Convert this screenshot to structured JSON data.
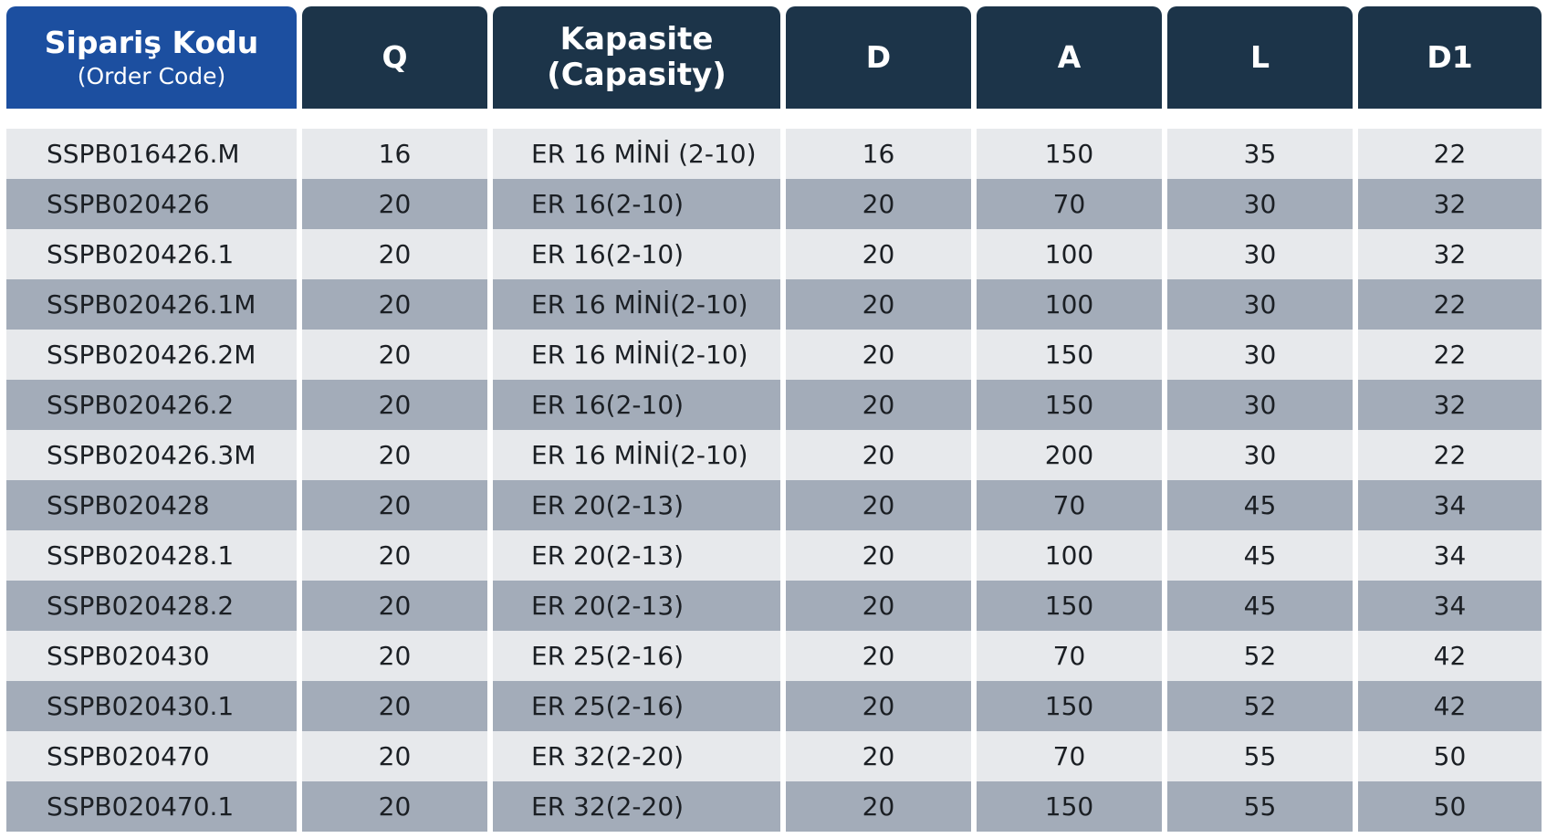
{
  "table": {
    "headers": {
      "code_title": "Sipariş Kodu",
      "code_sub": "(Order Code)",
      "q": "Q",
      "kap_line1": "Kapasite",
      "kap_line2": "(Capasity)",
      "d": "D",
      "a": "A",
      "l": "L",
      "d1": "D1"
    },
    "colors": {
      "header_primary": "#1c4fa0",
      "header_dark": "#1c3449",
      "row_light": "#e7e9ec",
      "row_dark": "#a3acb9"
    },
    "rows": [
      {
        "code": "SSPB016426.M",
        "q": "16",
        "kap": "ER 16 MİNİ (2-10)",
        "d": "16",
        "a": "150",
        "l": "35",
        "d1": "22"
      },
      {
        "code": "SSPB020426",
        "q": "20",
        "kap": "ER 16(2-10)",
        "d": "20",
        "a": "70",
        "l": "30",
        "d1": "32"
      },
      {
        "code": "SSPB020426.1",
        "q": "20",
        "kap": "ER 16(2-10)",
        "d": "20",
        "a": "100",
        "l": "30",
        "d1": "32"
      },
      {
        "code": "SSPB020426.1M",
        "q": "20",
        "kap": "ER 16 MİNİ(2-10)",
        "d": "20",
        "a": "100",
        "l": "30",
        "d1": "22"
      },
      {
        "code": "SSPB020426.2M",
        "q": "20",
        "kap": "ER 16 MİNİ(2-10)",
        "d": "20",
        "a": "150",
        "l": "30",
        "d1": "22"
      },
      {
        "code": "SSPB020426.2",
        "q": "20",
        "kap": "ER 16(2-10)",
        "d": "20",
        "a": "150",
        "l": "30",
        "d1": "32"
      },
      {
        "code": "SSPB020426.3M",
        "q": "20",
        "kap": "ER 16 MİNİ(2-10)",
        "d": "20",
        "a": "200",
        "l": "30",
        "d1": "22"
      },
      {
        "code": "SSPB020428",
        "q": "20",
        "kap": "ER 20(2-13)",
        "d": "20",
        "a": "70",
        "l": "45",
        "d1": "34"
      },
      {
        "code": "SSPB020428.1",
        "q": "20",
        "kap": "ER 20(2-13)",
        "d": "20",
        "a": "100",
        "l": "45",
        "d1": "34"
      },
      {
        "code": "SSPB020428.2",
        "q": "20",
        "kap": "ER 20(2-13)",
        "d": "20",
        "a": "150",
        "l": "45",
        "d1": "34"
      },
      {
        "code": "SSPB020430",
        "q": "20",
        "kap": "ER 25(2-16)",
        "d": "20",
        "a": "70",
        "l": "52",
        "d1": "42"
      },
      {
        "code": "SSPB020430.1",
        "q": "20",
        "kap": "ER 25(2-16)",
        "d": "20",
        "a": "150",
        "l": "52",
        "d1": "42"
      },
      {
        "code": "SSPB020470",
        "q": "20",
        "kap": "ER 32(2-20)",
        "d": "20",
        "a": "70",
        "l": "55",
        "d1": "50"
      },
      {
        "code": "SSPB020470.1",
        "q": "20",
        "kap": "ER 32(2-20)",
        "d": "20",
        "a": "150",
        "l": "55",
        "d1": "50"
      }
    ]
  }
}
